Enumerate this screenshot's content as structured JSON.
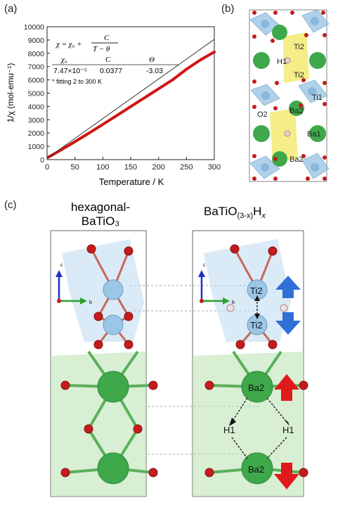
{
  "panels": {
    "a": "(a)",
    "b": "(b)",
    "c": "(c)"
  },
  "chart_data": {
    "type": "line",
    "xlabel": "Temperature / K",
    "ylabel": "1/χ (mol·emu⁻¹)",
    "xlim": [
      0,
      300
    ],
    "ylim": [
      0,
      10000
    ],
    "xticks": [
      "0",
      "50",
      "100",
      "150",
      "200",
      "250",
      "300"
    ],
    "yticks": [
      "0",
      "1000",
      "2000",
      "3000",
      "4000",
      "5000",
      "6000",
      "7000",
      "8000",
      "9000",
      "10000"
    ],
    "grid": false,
    "series": [
      {
        "role": "measured",
        "color": "#d11414",
        "x": [
          2,
          10,
          25,
          50,
          75,
          100,
          125,
          150,
          175,
          200,
          225,
          250,
          275,
          300
        ],
        "y": [
          180,
          360,
          730,
          1350,
          1990,
          2650,
          3320,
          3990,
          4660,
          5330,
          6000,
          6800,
          7500,
          8100
        ]
      },
      {
        "role": "fit",
        "color": "#333333",
        "x": [
          0,
          300
        ],
        "y": [
          105,
          9050
        ]
      }
    ],
    "annotation": {
      "formula_lhs": "χ = χ₀ +",
      "formula_num": "C",
      "formula_den": "T − θ",
      "header": [
        "χ₀",
        "C",
        "Θ"
      ],
      "values": [
        "7.47×10⁻⁵",
        "0.0377",
        "-3.03"
      ],
      "note": "* fitting 2 to 300 K"
    }
  },
  "structure_b": {
    "labels": [
      "Ti2",
      "H1",
      "Ti2",
      "Ti1",
      "O2",
      "Ba2",
      "Ba1",
      "Ba2"
    ]
  },
  "panel_c": {
    "left_title_line1": "hexagonal-",
    "left_title_line2": "BaTiO₃",
    "right_title_main": "BaTiO",
    "right_title_sub": "(3-x)",
    "right_title_h": "H",
    "right_title_x": "x",
    "axes": {
      "c": "c",
      "b": "b"
    },
    "labels": {
      "ti_top": "Ti2",
      "ti_bottom": "Ti2",
      "ba_top": "Ba2",
      "ba_bottom": "Ba2",
      "h_left": "H1",
      "h_right": "H1"
    },
    "colors": {
      "ti": "#9cc6e6",
      "ba": "#3ea84a",
      "o": "#c41c1c",
      "up_arrow": "#2f6fd6",
      "down_arrow": "#2f6fd6",
      "ba_arrow": "#e01a1a"
    }
  }
}
